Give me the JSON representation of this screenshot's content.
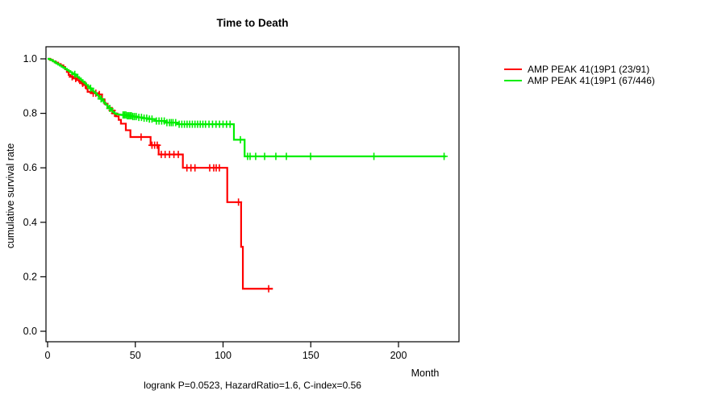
{
  "title": "Time to Death",
  "caption": "logrank P=0.0523, HazardRatio=1.6, C-index=0.56",
  "axes": {
    "xlabel": "Month",
    "ylabel": "cumulative survival rate"
  },
  "legend": {
    "items": [
      {
        "label": "AMP PEAK 41(19P1 (23/91)",
        "color": "#ff0000"
      },
      {
        "label": "AMP PEAK 41(19P1 (67/446)",
        "color": "#00ee00"
      }
    ]
  },
  "chart_data": {
    "type": "line",
    "subtype": "kaplan-meier-step-survival",
    "title": "Time to Death",
    "xlabel": "Month",
    "ylabel": "cumulative survival rate",
    "xlim": [
      0,
      235
    ],
    "ylim": [
      0,
      1.04
    ],
    "xticks": [
      0,
      50,
      100,
      150,
      200
    ],
    "yticks": [
      {
        "v": 0.0,
        "label": "0.0"
      },
      {
        "v": 0.2,
        "label": "0.2"
      },
      {
        "v": 0.4,
        "label": "0.4"
      },
      {
        "v": 0.6,
        "label": "0.6"
      },
      {
        "v": 0.8,
        "label": "0.8"
      },
      {
        "v": 1.0,
        "label": "1.0"
      }
    ],
    "grid": false,
    "legend_position": "right-outside",
    "annotation": "logrank P=0.0523, HazardRatio=1.6, C-index=0.56",
    "series": [
      {
        "name": "AMP PEAK 41(19P1 (23/91)",
        "events_over_total": "23/91",
        "color": "#ff0000",
        "end_time": 128.4,
        "steps": [
          [
            0,
            1.0
          ],
          [
            1.5,
            0.996
          ],
          [
            3,
            0.991
          ],
          [
            4.5,
            0.986
          ],
          [
            6,
            0.981
          ],
          [
            7.5,
            0.976
          ],
          [
            9,
            0.97
          ],
          [
            10,
            0.962
          ],
          [
            11,
            0.952
          ],
          [
            12,
            0.941
          ],
          [
            13,
            0.934
          ],
          [
            15,
            0.928
          ],
          [
            16.5,
            0.922
          ],
          [
            18,
            0.916
          ],
          [
            19.5,
            0.91
          ],
          [
            20.5,
            0.904
          ],
          [
            22,
            0.891
          ],
          [
            22.8,
            0.879
          ],
          [
            25,
            0.874
          ],
          [
            28.8,
            0.869
          ],
          [
            31,
            0.851
          ],
          [
            32.5,
            0.835
          ],
          [
            34.2,
            0.82
          ],
          [
            36,
            0.81
          ],
          [
            37.5,
            0.8
          ],
          [
            39,
            0.789
          ],
          [
            40.5,
            0.776
          ],
          [
            41.8,
            0.762
          ],
          [
            44.6,
            0.738
          ],
          [
            47.2,
            0.713
          ],
          [
            58.7,
            0.683
          ],
          [
            63.3,
            0.649
          ],
          [
            77.1,
            0.6
          ],
          [
            102.4,
            0.474
          ],
          [
            110.3,
            0.31
          ],
          [
            111.3,
            0.156
          ]
        ],
        "censor_times": [
          14,
          16,
          20,
          21.5,
          26,
          27.5,
          29.5,
          36.8,
          38.2,
          53.3,
          59.5,
          61,
          62.5,
          64.8,
          67,
          69.5,
          72,
          74.5,
          79.4,
          81.7,
          84,
          92.4,
          94.7,
          96.1,
          97.9,
          108.8,
          126
        ]
      },
      {
        "name": "AMP PEAK 41(19P1 (67/446)",
        "events_over_total": "67/446",
        "color": "#00ee00",
        "end_time": 227,
        "steps": [
          [
            0,
            1.0
          ],
          [
            1,
            0.998
          ],
          [
            2,
            0.995
          ],
          [
            3,
            0.991
          ],
          [
            4,
            0.987
          ],
          [
            5,
            0.983
          ],
          [
            6,
            0.979
          ],
          [
            7,
            0.975
          ],
          [
            8,
            0.971
          ],
          [
            9,
            0.967
          ],
          [
            10,
            0.963
          ],
          [
            11,
            0.959
          ],
          [
            12,
            0.955
          ],
          [
            13,
            0.951
          ],
          [
            14,
            0.947
          ],
          [
            15,
            0.943
          ],
          [
            16,
            0.938
          ],
          [
            17,
            0.933
          ],
          [
            18,
            0.928
          ],
          [
            19,
            0.922
          ],
          [
            20,
            0.916
          ],
          [
            21,
            0.91
          ],
          [
            22,
            0.904
          ],
          [
            23,
            0.898
          ],
          [
            24,
            0.892
          ],
          [
            25,
            0.886
          ],
          [
            26,
            0.88
          ],
          [
            27,
            0.874
          ],
          [
            28,
            0.867
          ],
          [
            29,
            0.86
          ],
          [
            30,
            0.853
          ],
          [
            31,
            0.846
          ],
          [
            32,
            0.839
          ],
          [
            33,
            0.832
          ],
          [
            34,
            0.825
          ],
          [
            35,
            0.818
          ],
          [
            36,
            0.811
          ],
          [
            37,
            0.805
          ],
          [
            38,
            0.8
          ],
          [
            39,
            0.797
          ],
          [
            40,
            0.796
          ],
          [
            41,
            0.795
          ],
          [
            42,
            0.794
          ],
          [
            45,
            0.791
          ],
          [
            48,
            0.788
          ],
          [
            51,
            0.785
          ],
          [
            54,
            0.782
          ],
          [
            57,
            0.779
          ],
          [
            61,
            0.772
          ],
          [
            67,
            0.766
          ],
          [
            74,
            0.76
          ],
          [
            106.2,
            0.703
          ],
          [
            112.3,
            0.642
          ]
        ],
        "censor_times": [
          15.5,
          24.5,
          30.5,
          35.5,
          43,
          43.8,
          44.6,
          45.4,
          46.2,
          47,
          47.8,
          48.6,
          49.5,
          50.5,
          52,
          53.5,
          55,
          56.5,
          58,
          59.5,
          62,
          63.5,
          65,
          66.5,
          68,
          69.5,
          70.5,
          71.5,
          73,
          75,
          76.5,
          78,
          79.5,
          81,
          82.5,
          84,
          85.5,
          87,
          88.5,
          90,
          92,
          94,
          96,
          98,
          100,
          102,
          104,
          109.9,
          114,
          115.4,
          118.6,
          123.7,
          130.1,
          136.1,
          149.9,
          186,
          226
        ]
      }
    ]
  }
}
